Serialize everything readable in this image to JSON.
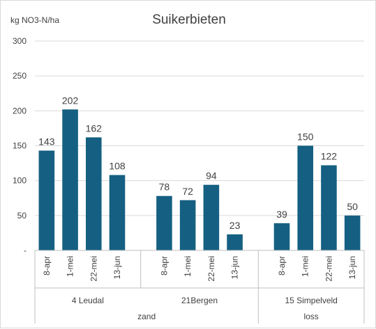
{
  "chart_data": {
    "type": "bar",
    "title": "Suikerbieten",
    "ylabel": "kg NO3-N/ha",
    "ylim": [
      0,
      300
    ],
    "yticks": [
      {
        "value": 0,
        "label": "-"
      },
      {
        "value": 50,
        "label": "50"
      },
      {
        "value": 100,
        "label": "100"
      },
      {
        "value": 150,
        "label": "150"
      },
      {
        "value": 200,
        "label": "200"
      },
      {
        "value": 250,
        "label": "250"
      },
      {
        "value": 300,
        "label": "300"
      }
    ],
    "grid": true,
    "bar_color": "#156082",
    "groups": [
      {
        "location": "4 Leudal",
        "soil": "zand",
        "categories": [
          "8-apr",
          "1-mei",
          "22-mei",
          "13-jun"
        ],
        "values": [
          143,
          202,
          162,
          108
        ]
      },
      {
        "location": "21Bergen",
        "soil": "zand",
        "categories": [
          "8-apr",
          "1-mei",
          "22-mei",
          "13-jun"
        ],
        "values": [
          78,
          72,
          94,
          23
        ]
      },
      {
        "location": "15 Simpelveld",
        "soil": "loss",
        "categories": [
          "8-apr",
          "1-mei",
          "22-mei",
          "13-jun"
        ],
        "values": [
          39,
          150,
          122,
          50
        ]
      }
    ],
    "soil_labels": [
      "zand",
      "loss"
    ]
  }
}
